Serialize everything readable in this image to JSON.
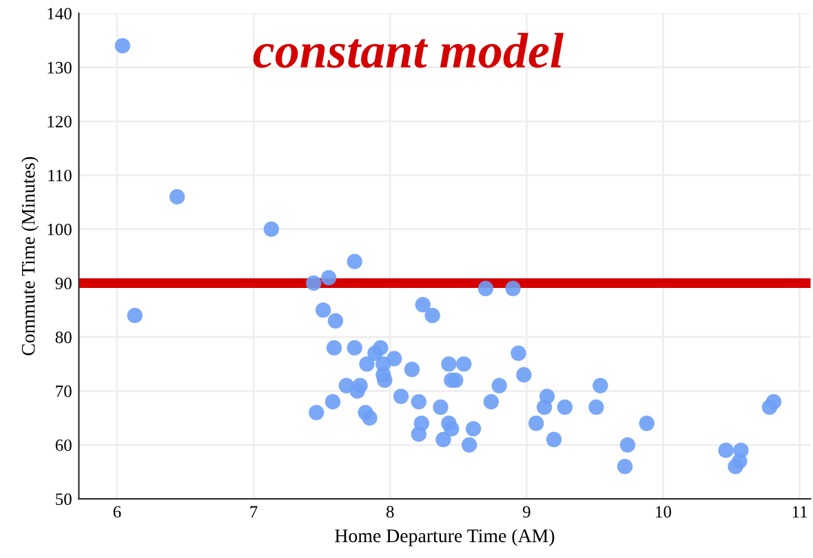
{
  "chart_data": {
    "type": "scatter",
    "xlabel": "Home Departure Time (AM)",
    "ylabel": "Commute Time (Minutes)",
    "annotations": [
      "constant model"
    ],
    "x": [
      6.13,
      7.44,
      7.55,
      7.51,
      7.6,
      7.74,
      7.59,
      7.74,
      7.83,
      7.89,
      7.93,
      7.95,
      8.03,
      7.95,
      7.96,
      7.68,
      7.78,
      7.76,
      8.16,
      7.46,
      7.58,
      7.82,
      7.85,
      8.08,
      8.21,
      8.23,
      8.21,
      8.24,
      8.31,
      8.37,
      8.39,
      8.7,
      8.9,
      8.43,
      8.54,
      8.45,
      8.48,
      8.43,
      8.45,
      8.61,
      8.58,
      8.74,
      8.8,
      8.94,
      8.98,
      9.07,
      9.13,
      9.15,
      9.2,
      9.28,
      9.51,
      9.54,
      9.74,
      9.72,
      9.88,
      10.46,
      10.57,
      10.56,
      10.53,
      10.78,
      10.81,
      6.04,
      6.44,
      7.13
    ],
    "series": [
      {
        "color": "#6d9ef5",
        "values": [
          84,
          90,
          91,
          85,
          83,
          94,
          78,
          78,
          75,
          77,
          78,
          75,
          76,
          73,
          72,
          71,
          71,
          70,
          74,
          66,
          68,
          66,
          65,
          69,
          68,
          64,
          62,
          86,
          84,
          67,
          61,
          89,
          89,
          75,
          75,
          72,
          72,
          64,
          63,
          63,
          60,
          68,
          71,
          77,
          73,
          64,
          67,
          69,
          61,
          67,
          67,
          71,
          60,
          56,
          64,
          59,
          59,
          57,
          56,
          67,
          68,
          134,
          106,
          100
        ]
      }
    ],
    "marker": "circle",
    "xlim": [
      5.72,
      11.08
    ],
    "xticks": [
      6,
      7,
      8,
      9,
      10,
      11
    ],
    "ylim": [
      50,
      140
    ],
    "yticks": [
      50,
      60,
      70,
      80,
      90,
      100,
      110,
      120,
      130,
      140
    ],
    "grid": true,
    "ref_lines": [
      {
        "axis": "y",
        "value": 90,
        "color": "#d40000"
      }
    ]
  }
}
